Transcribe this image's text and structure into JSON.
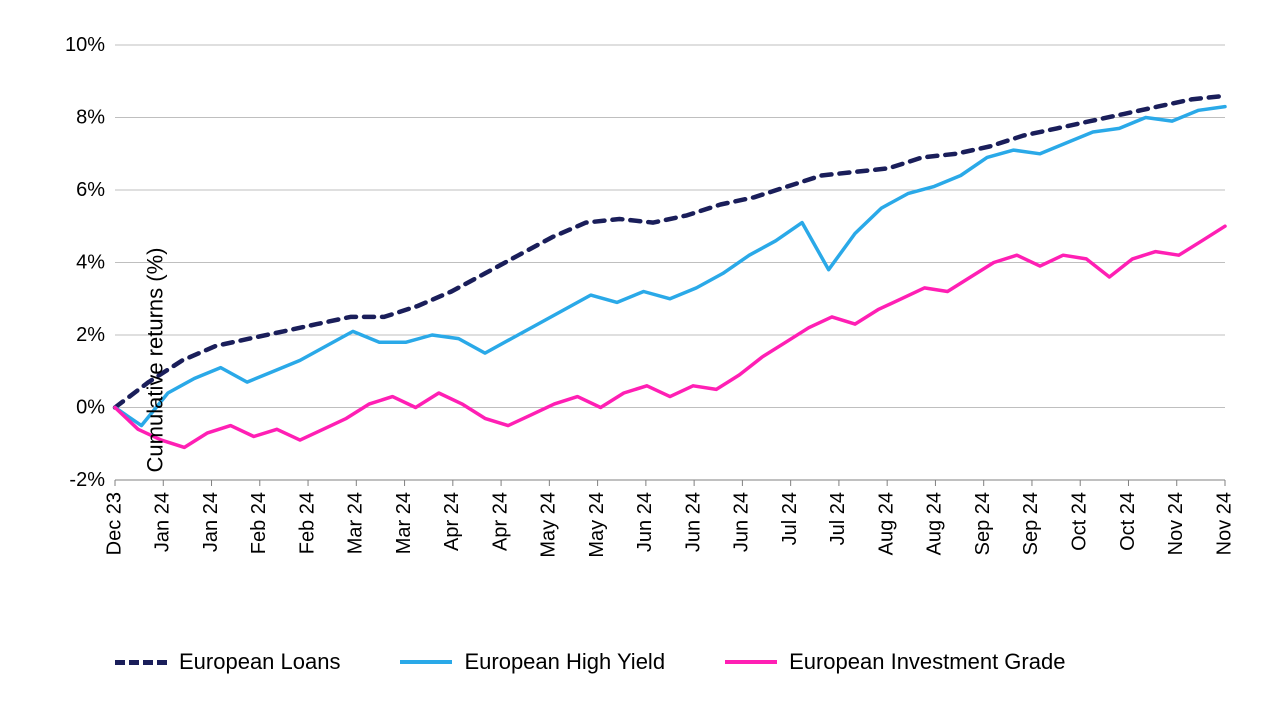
{
  "chart": {
    "type": "line",
    "background": "#ffffff",
    "grid_color": "#bfbfbf",
    "axis_color": "#808080",
    "text_color": "#000000",
    "label_fontsize": 22,
    "tick_fontsize": 20,
    "ylabel": "Cumulative returns (%)",
    "ylim": [
      -2,
      10
    ],
    "ytick_step": 2,
    "yticks": [
      -2,
      0,
      2,
      4,
      6,
      8,
      10
    ],
    "ytick_labels": [
      "-2%",
      "0%",
      "2%",
      "4%",
      "6%",
      "8%",
      "10%"
    ],
    "x_count": 24,
    "xtick_labels": [
      "Dec 23",
      "Jan 24",
      "Jan 24",
      "Feb 24",
      "Feb 24",
      "Mar 24",
      "Mar 24",
      "Apr 24",
      "Apr 24",
      "May 24",
      "May 24",
      "Jun 24",
      "Jun 24",
      "Jun 24",
      "Jul 24",
      "Jul 24",
      "Aug 24",
      "Aug 24",
      "Sep 24",
      "Sep 24",
      "Oct 24",
      "Oct 24",
      "Nov 24",
      "Nov 24"
    ],
    "series": [
      {
        "name": "European Loans",
        "color": "#1a1e5a",
        "dash": "10,8",
        "width": 4.5,
        "values": [
          0.0,
          0.7,
          1.3,
          1.7,
          1.9,
          2.1,
          2.3,
          2.5,
          2.5,
          2.8,
          3.2,
          3.7,
          4.2,
          4.7,
          5.1,
          5.2,
          5.1,
          5.3,
          5.6,
          5.8,
          6.1,
          6.4,
          6.5,
          6.6,
          6.9,
          7.0,
          7.2,
          7.5,
          7.7,
          7.9,
          8.1,
          8.3,
          8.5,
          8.6
        ]
      },
      {
        "name": "European High Yield",
        "color": "#2aa9e8",
        "dash": "",
        "width": 3.5,
        "values": [
          0.0,
          -0.5,
          0.4,
          0.8,
          1.1,
          0.7,
          1.0,
          1.3,
          1.7,
          2.1,
          1.8,
          1.8,
          2.0,
          1.9,
          1.5,
          1.9,
          2.3,
          2.7,
          3.1,
          2.9,
          3.2,
          3.0,
          3.3,
          3.7,
          4.2,
          4.6,
          5.1,
          3.8,
          4.8,
          5.5,
          5.9,
          6.1,
          6.4,
          6.9,
          7.1,
          7.0,
          7.3,
          7.6,
          7.7,
          8.0,
          7.9,
          8.2,
          8.3
        ]
      },
      {
        "name": "European Investment Grade",
        "color": "#ff1fb4",
        "dash": "",
        "width": 3.5,
        "values": [
          0.0,
          -0.6,
          -0.9,
          -1.1,
          -0.7,
          -0.5,
          -0.8,
          -0.6,
          -0.9,
          -0.6,
          -0.3,
          0.1,
          0.3,
          0.0,
          0.4,
          0.1,
          -0.3,
          -0.5,
          -0.2,
          0.1,
          0.3,
          0.0,
          0.4,
          0.6,
          0.3,
          0.6,
          0.5,
          0.9,
          1.4,
          1.8,
          2.2,
          2.5,
          2.3,
          2.7,
          3.0,
          3.3,
          3.2,
          3.6,
          4.0,
          4.2,
          3.9,
          4.2,
          4.1,
          3.6,
          4.1,
          4.3,
          4.2,
          4.6,
          5.0
        ]
      }
    ],
    "legend": [
      {
        "label": "European Loans",
        "color": "#1a1e5a",
        "dashed": true
      },
      {
        "label": "European High Yield",
        "color": "#2aa9e8",
        "dashed": false
      },
      {
        "label": "European Investment Grade",
        "color": "#ff1fb4",
        "dashed": false
      }
    ]
  }
}
